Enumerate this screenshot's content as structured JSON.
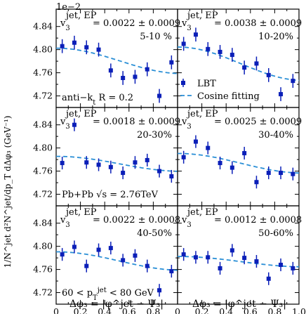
{
  "figure": {
    "exponent_label": "1e−2",
    "y_axis_label": "1/N^jet d²N^jet/dp_T dΔφ₃ (GeV⁻¹)",
    "x_axis_label": "Δφ₃ = |φ^jet − Ψ₃|",
    "y_ticks": [
      "4.84",
      "4.80",
      "4.76",
      "4.72"
    ],
    "x_ticks": [
      "0",
      "0.2",
      "0.4",
      "0.6",
      "0.8",
      "1.0"
    ],
    "legend": {
      "points": "LBT",
      "line": "Cosine fitting"
    },
    "notes": {
      "jet_algo": "anti−k_t R = 0.2",
      "system": "Pb+Pb √s = 2.76TeV",
      "pt_range": "60 < p_T^jet < 80 GeV"
    }
  },
  "colors": {
    "points": "#0b1fb8",
    "fit": "#2a8fd6"
  },
  "chart_data": [
    {
      "type": "scatter",
      "centrality": "5-10 %",
      "v3_label": "v₃^jet,EP",
      "v3_value": "= 0.0022 ± 0.0009",
      "x": [
        0.05,
        0.15,
        0.25,
        0.35,
        0.45,
        0.55,
        0.65,
        0.75,
        0.85,
        0.95
      ],
      "y": [
        4.806,
        4.812,
        4.804,
        4.8,
        4.764,
        4.751,
        4.753,
        4.766,
        4.72,
        4.778
      ],
      "yerr": [
        0.012,
        0.012,
        0.012,
        0.012,
        0.012,
        0.012,
        0.012,
        0.012,
        0.012,
        0.012
      ],
      "fit": {
        "a0": 4.7805,
        "a3": 0.022
      },
      "ylim": [
        4.7,
        4.87
      ],
      "xlim": [
        0,
        1.0
      ]
    },
    {
      "type": "scatter",
      "centrality": "10-20%",
      "v3_label": "v₃^jet,EP",
      "v3_value": "= 0.0038 ± 0.0009",
      "x": [
        0.05,
        0.15,
        0.25,
        0.35,
        0.45,
        0.55,
        0.65,
        0.75,
        0.85,
        0.95
      ],
      "y": [
        4.81,
        4.826,
        4.801,
        4.796,
        4.791,
        4.769,
        4.776,
        4.756,
        4.723,
        4.746
      ],
      "yerr": [
        0.012,
        0.012,
        0.012,
        0.012,
        0.012,
        0.012,
        0.012,
        0.012,
        0.012,
        0.012
      ],
      "fit": {
        "a0": 4.7755,
        "a3": 0.029
      },
      "ylim": [
        4.7,
        4.87
      ],
      "xlim": [
        0,
        1.0
      ]
    },
    {
      "type": "scatter",
      "centrality": "20-30%",
      "v3_label": "v₃^jet,EP",
      "v3_value": "= 0.0018 ± 0.0009",
      "x": [
        0.05,
        0.15,
        0.25,
        0.35,
        0.45,
        0.55,
        0.65,
        0.75,
        0.85,
        0.95
      ],
      "y": [
        4.774,
        4.84,
        4.775,
        4.771,
        4.767,
        4.757,
        4.775,
        4.779,
        4.76,
        4.751
      ],
      "yerr": [
        0.011,
        0.011,
        0.011,
        0.011,
        0.011,
        0.011,
        0.011,
        0.011,
        0.011,
        0.011
      ],
      "fit": {
        "a0": 4.7725,
        "a3": 0.013
      },
      "ylim": [
        4.7,
        4.87
      ],
      "xlim": [
        0,
        1.0
      ]
    },
    {
      "type": "scatter",
      "centrality": "30-40%",
      "v3_label": "v₃^jet,EP",
      "v3_value": "= 0.0025 ± 0.0009",
      "x": [
        0.05,
        0.15,
        0.25,
        0.35,
        0.45,
        0.55,
        0.65,
        0.75,
        0.85,
        0.95
      ],
      "y": [
        4.784,
        4.811,
        4.8,
        4.774,
        4.766,
        4.791,
        4.741,
        4.757,
        4.757,
        4.755
      ],
      "yerr": [
        0.011,
        0.011,
        0.011,
        0.011,
        0.011,
        0.011,
        0.011,
        0.011,
        0.011,
        0.011
      ],
      "fit": {
        "a0": 4.7735,
        "a3": 0.017
      },
      "ylim": [
        4.7,
        4.87
      ],
      "xlim": [
        0,
        1.0
      ]
    },
    {
      "type": "scatter",
      "centrality": "40-50%",
      "v3_label": "v₃^jet,EP",
      "v3_value": "= 0.0022 ± 0.0008",
      "x": [
        0.05,
        0.15,
        0.25,
        0.35,
        0.45,
        0.55,
        0.65,
        0.75,
        0.85,
        0.95
      ],
      "y": [
        4.786,
        4.799,
        4.766,
        4.794,
        4.797,
        4.776,
        4.784,
        4.766,
        4.724,
        4.757
      ],
      "yerr": [
        0.011,
        0.011,
        0.011,
        0.011,
        0.011,
        0.011,
        0.011,
        0.011,
        0.011,
        0.011
      ],
      "fit": {
        "a0": 4.7745,
        "a3": 0.016
      },
      "ylim": [
        4.7,
        4.87
      ],
      "xlim": [
        0,
        1.0
      ]
    },
    {
      "type": "scatter",
      "centrality": "50-60%",
      "v3_label": "v₃^jet,EP",
      "v3_value": "= 0.0012 ± 0.0008",
      "x": [
        0.05,
        0.15,
        0.25,
        0.35,
        0.45,
        0.55,
        0.65,
        0.75,
        0.85,
        0.95
      ],
      "y": [
        4.786,
        4.781,
        4.781,
        4.762,
        4.793,
        4.78,
        4.774,
        4.744,
        4.768,
        4.762
      ],
      "yerr": [
        0.011,
        0.011,
        0.011,
        0.011,
        0.011,
        0.011,
        0.011,
        0.011,
        0.011,
        0.011
      ],
      "fit": {
        "a0": 4.7735,
        "a3": 0.009
      },
      "ylim": [
        4.7,
        4.87
      ],
      "xlim": [
        0,
        1.0
      ]
    }
  ]
}
